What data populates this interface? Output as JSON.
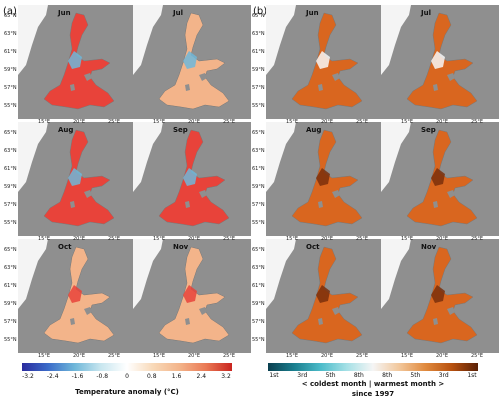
{
  "panels": {
    "a_label": "(a)",
    "b_label": "(b)"
  },
  "months": [
    "Jun",
    "Jul",
    "Aug",
    "Sep",
    "Oct",
    "Nov"
  ],
  "lat_ticks": [
    "65°N",
    "63°N",
    "61°N",
    "59°N",
    "57°N",
    "55°N"
  ],
  "lon_ticks": [
    "15°E",
    "20°E",
    "25°E"
  ],
  "colorbar_a": {
    "ticks": [
      "-3.2",
      "-2.4",
      "-1.6",
      "-0.8",
      "0",
      "0.8",
      "1.6",
      "2.4",
      "3.2"
    ],
    "label": "Temperature anomaly (°C)"
  },
  "colorbar_b": {
    "ticks": [
      "1st",
      "3rd",
      "5th",
      "8th",
      "8th",
      "5th",
      "3rd",
      "1st"
    ],
    "label_line1": "< coldest month | warmest month >",
    "label_line2": "since 1997"
  },
  "colors": {
    "land": "#8f8f8f",
    "anomaly_warm": "#e8433a",
    "anomaly_mild": "#f3b48a",
    "anomaly_cool": "#6fb7d9",
    "rank_warm": "#d9661f",
    "rank_dark": "#7a2f0c",
    "rank_white": "#f7f7f7"
  }
}
